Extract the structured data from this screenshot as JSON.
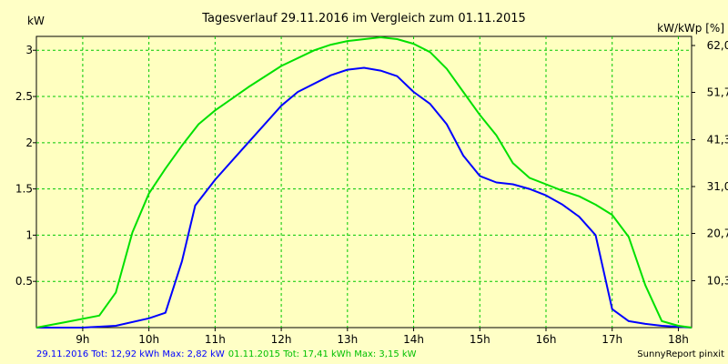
{
  "chart_data": {
    "type": "line",
    "title": "Tagesverlauf 29.11.2016 im Vergleich zum 01.11.2015",
    "ylabel_left": "kW",
    "ylabel_right": "kW/kWp [%]",
    "x_axis": {
      "unit": "hour",
      "range": [
        8.3,
        18.2
      ],
      "tick_values": [
        9,
        10,
        11,
        12,
        13,
        14,
        15,
        16,
        17,
        18
      ],
      "tick_labels": [
        "9h",
        "10h",
        "11h",
        "12h",
        "13h",
        "14h",
        "15h",
        "16h",
        "17h",
        "18h"
      ]
    },
    "y_axis_left": {
      "range": [
        0,
        3.15
      ],
      "tick_values": [
        0.5,
        1,
        1.5,
        2,
        2.5,
        3
      ],
      "tick_labels": [
        "0.5",
        "1",
        "1.5",
        "2",
        "2.5",
        "3"
      ]
    },
    "y_axis_right": {
      "range": [
        0,
        64
      ],
      "tick_values": [
        10.3,
        20.7,
        31.0,
        41.3,
        51.7,
        62.0
      ],
      "tick_labels": [
        "10,3",
        "20,7",
        "31,0",
        "41,3",
        "51,7",
        "62,0"
      ]
    },
    "grid": true,
    "series": [
      {
        "name": "29.11.2016",
        "color": "#0000ff",
        "x": [
          8.3,
          9.0,
          9.5,
          10.0,
          10.25,
          10.5,
          10.7,
          11.0,
          11.5,
          12.0,
          12.25,
          12.75,
          13.0,
          13.25,
          13.5,
          13.75,
          14.0,
          14.25,
          14.5,
          14.75,
          15.0,
          15.25,
          15.5,
          15.75,
          16.0,
          16.25,
          16.5,
          16.75,
          17.0,
          17.25,
          17.5,
          17.75,
          18.2
        ],
        "y": [
          0.0,
          0.0,
          0.02,
          0.1,
          0.16,
          0.72,
          1.32,
          1.6,
          2.0,
          2.4,
          2.55,
          2.73,
          2.79,
          2.81,
          2.78,
          2.72,
          2.55,
          2.42,
          2.2,
          1.86,
          1.64,
          1.57,
          1.55,
          1.5,
          1.43,
          1.33,
          1.2,
          1.0,
          0.2,
          0.07,
          0.04,
          0.02,
          0.0
        ]
      },
      {
        "name": "01.11.2015",
        "color": "#00e000",
        "x": [
          8.3,
          8.75,
          9.25,
          9.5,
          9.75,
          10.0,
          10.25,
          10.5,
          10.75,
          11.0,
          11.5,
          12.0,
          12.5,
          12.75,
          13.0,
          13.5,
          13.75,
          14.0,
          14.25,
          14.5,
          14.75,
          15.0,
          15.25,
          15.5,
          15.75,
          16.0,
          16.25,
          16.5,
          16.75,
          17.0,
          17.25,
          17.5,
          17.75,
          18.0,
          18.2
        ],
        "y": [
          0.0,
          0.06,
          0.13,
          0.38,
          1.03,
          1.45,
          1.72,
          1.97,
          2.2,
          2.35,
          2.6,
          2.83,
          3.0,
          3.06,
          3.1,
          3.14,
          3.12,
          3.07,
          2.98,
          2.8,
          2.55,
          2.3,
          2.08,
          1.78,
          1.62,
          1.55,
          1.48,
          1.42,
          1.33,
          1.22,
          0.98,
          0.46,
          0.07,
          0.02,
          0.0
        ]
      }
    ]
  },
  "footer": {
    "series1_text": "29.11.2016 Tot: 12,92 kWh Max: 2,82 kW",
    "series2_text": "01.11.2015 Tot: 17,41 kWh Max: 3,15 kW",
    "credit": "SunnyReport pinxit"
  }
}
